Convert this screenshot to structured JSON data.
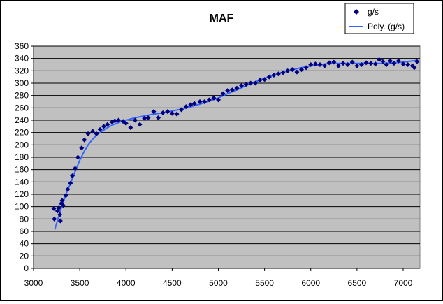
{
  "chart_data": {
    "type": "scatter",
    "title": "MAF",
    "xlabel": "",
    "ylabel": "",
    "xlim": [
      3000,
      7000
    ],
    "ylim": [
      0,
      360
    ],
    "xticks": [
      "3000",
      "3500",
      "4000",
      "4500",
      "5000",
      "5500",
      "6000",
      "6500",
      "7000"
    ],
    "yticks": [
      "0",
      "20",
      "40",
      "60",
      "80",
      "100",
      "120",
      "140",
      "160",
      "180",
      "200",
      "220",
      "240",
      "260",
      "280",
      "300",
      "320",
      "340",
      "360"
    ],
    "grid": "horizontal",
    "plot_background": "#c0c0c0",
    "legend_position": "top-right",
    "series": [
      {
        "name": "g/s",
        "kind": "scatter",
        "marker": "diamond",
        "color": "#000080",
        "points": [
          [
            3220,
            97
          ],
          [
            3225,
            80
          ],
          [
            3260,
            93
          ],
          [
            3275,
            98
          ],
          [
            3285,
            87
          ],
          [
            3290,
            77
          ],
          [
            3300,
            105
          ],
          [
            3310,
            110
          ],
          [
            3320,
            102
          ],
          [
            3350,
            118
          ],
          [
            3370,
            128
          ],
          [
            3400,
            138
          ],
          [
            3420,
            150
          ],
          [
            3450,
            162
          ],
          [
            3480,
            180
          ],
          [
            3520,
            195
          ],
          [
            3550,
            208
          ],
          [
            3590,
            218
          ],
          [
            3640,
            222
          ],
          [
            3680,
            218
          ],
          [
            3720,
            225
          ],
          [
            3760,
            230
          ],
          [
            3800,
            233
          ],
          [
            3850,
            237
          ],
          [
            3880,
            239
          ],
          [
            3920,
            240
          ],
          [
            3970,
            238
          ],
          [
            4000,
            235
          ],
          [
            4050,
            228
          ],
          [
            4100,
            240
          ],
          [
            4150,
            233
          ],
          [
            4200,
            243
          ],
          [
            4240,
            244
          ],
          [
            4300,
            254
          ],
          [
            4350,
            244
          ],
          [
            4400,
            252
          ],
          [
            4450,
            254
          ],
          [
            4500,
            251
          ],
          [
            4550,
            250
          ],
          [
            4600,
            257
          ],
          [
            4650,
            262
          ],
          [
            4700,
            265
          ],
          [
            4740,
            267
          ],
          [
            4800,
            270
          ],
          [
            4850,
            270
          ],
          [
            4900,
            273
          ],
          [
            4950,
            276
          ],
          [
            5000,
            273
          ],
          [
            5050,
            283
          ],
          [
            5100,
            288
          ],
          [
            5150,
            289
          ],
          [
            5200,
            292
          ],
          [
            5250,
            296
          ],
          [
            5300,
            298
          ],
          [
            5350,
            300
          ],
          [
            5400,
            300
          ],
          [
            5450,
            305
          ],
          [
            5500,
            306
          ],
          [
            5550,
            310
          ],
          [
            5600,
            313
          ],
          [
            5650,
            315
          ],
          [
            5700,
            317
          ],
          [
            5750,
            320
          ],
          [
            5800,
            322
          ],
          [
            5850,
            318
          ],
          [
            5900,
            322
          ],
          [
            5950,
            325
          ],
          [
            6000,
            330
          ],
          [
            6050,
            331
          ],
          [
            6100,
            330
          ],
          [
            6150,
            328
          ],
          [
            6200,
            333
          ],
          [
            6250,
            334
          ],
          [
            6300,
            328
          ],
          [
            6350,
            332
          ],
          [
            6400,
            330
          ],
          [
            6450,
            334
          ],
          [
            6500,
            328
          ],
          [
            6550,
            330
          ],
          [
            6600,
            333
          ],
          [
            6650,
            332
          ],
          [
            6700,
            331
          ],
          [
            6740,
            338
          ],
          [
            6780,
            335
          ],
          [
            6820,
            330
          ],
          [
            6860,
            336
          ],
          [
            6900,
            332
          ],
          [
            6950,
            336
          ],
          [
            7000,
            331
          ],
          [
            7050,
            330
          ],
          [
            7100,
            328
          ],
          [
            7120,
            325
          ],
          [
            7150,
            335
          ]
        ]
      },
      {
        "name": "Poly. (g/s)",
        "kind": "line",
        "color": "#3366ff",
        "points": [
          [
            3230,
            63
          ],
          [
            3270,
            83
          ],
          [
            3300,
            98
          ],
          [
            3350,
            120
          ],
          [
            3400,
            138
          ],
          [
            3450,
            157
          ],
          [
            3500,
            175
          ],
          [
            3550,
            190
          ],
          [
            3600,
            202
          ],
          [
            3650,
            211
          ],
          [
            3700,
            218
          ],
          [
            3750,
            223
          ],
          [
            3800,
            228
          ],
          [
            3850,
            232
          ],
          [
            3900,
            235
          ],
          [
            3950,
            238
          ],
          [
            4000,
            240
          ],
          [
            4100,
            244
          ],
          [
            4200,
            247
          ],
          [
            4300,
            250
          ],
          [
            4400,
            252
          ],
          [
            4500,
            255
          ],
          [
            4600,
            258
          ],
          [
            4700,
            262
          ],
          [
            4800,
            266
          ],
          [
            4900,
            271
          ],
          [
            5000,
            276
          ],
          [
            5100,
            283
          ],
          [
            5200,
            289
          ],
          [
            5300,
            296
          ],
          [
            5400,
            302
          ],
          [
            5500,
            308
          ],
          [
            5600,
            313
          ],
          [
            5700,
            318
          ],
          [
            5800,
            322
          ],
          [
            5900,
            325
          ],
          [
            6000,
            328
          ],
          [
            6100,
            330
          ],
          [
            6200,
            332
          ],
          [
            6300,
            332
          ],
          [
            6400,
            332
          ],
          [
            6500,
            332
          ],
          [
            6600,
            332
          ],
          [
            6700,
            332
          ],
          [
            6800,
            332
          ],
          [
            6900,
            333
          ],
          [
            7000,
            334
          ],
          [
            7100,
            336
          ],
          [
            7150,
            337
          ]
        ]
      }
    ]
  }
}
